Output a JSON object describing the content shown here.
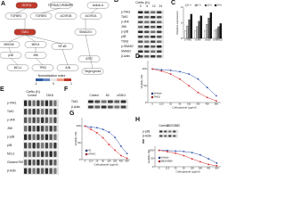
{
  "panels": {
    "a": {
      "label": "A",
      "nodes": [
        "GDF11",
        "TGFB/ACVR/BMPR",
        "Activin A",
        "TGFBR1",
        "TGFBR2",
        "ACVR1B",
        "ACVR2A",
        "TAK1",
        "SMAD2/3",
        "MKK3/6",
        "MKK4",
        "p38",
        "JNK",
        "NF-κB",
        "MCL1",
        "TP63",
        "JUN",
        "ATF2",
        "Target genes"
      ],
      "heatmap_label": "Normalization index",
      "scale": [
        -1,
        0,
        1
      ]
    },
    "b": {
      "label": "B",
      "treatment": "Cefto (h)",
      "times": [
        0,
        6,
        12,
        24
      ],
      "rows": [
        "p-TAK1",
        "TAK1",
        "p-JNK",
        "JNK",
        "p-p38",
        "p38",
        "TGFβ",
        "p-SMAD2",
        "SMAD2",
        "β-Actin"
      ]
    },
    "e": {
      "label": "E",
      "treatment": "Cefto (h)",
      "groups": [
        "Control",
        "TAK1i"
      ],
      "rows": [
        "p-TAK1",
        "TAK1",
        "p-JNK",
        "JNK",
        "p-p38",
        "p38",
        "MCL1",
        "Cleaved PARP",
        "β-Actin"
      ]
    },
    "f": {
      "label": "F",
      "groups": [
        "Control",
        "NC",
        "siTAK1"
      ],
      "rows": [
        "TAK1",
        "β-Actin"
      ]
    },
    "h": {
      "label": "H",
      "groups": [
        "Control",
        "SB203580"
      ],
      "rows": [
        "p-p38",
        "β-Actin"
      ]
    }
  },
  "chart_data": [
    {
      "type": "bar",
      "label": "C",
      "ylabel": "Relative expression",
      "categories": [
        "p-TAK1",
        "p-JNK",
        "p-p38",
        "p-SMAD2"
      ],
      "series": [
        {
          "name": "0 h",
          "color": "#ffffff",
          "values": [
            1,
            1,
            1,
            1
          ]
        },
        {
          "name": "6 h",
          "color": "#bbbbbb",
          "values": [
            1.6,
            1.5,
            1.8,
            1.2
          ]
        },
        {
          "name": "12 h",
          "color": "#666666",
          "values": [
            2.4,
            2.2,
            2.6,
            1.5
          ]
        },
        {
          "name": "24 h",
          "color": "#111111",
          "values": [
            3.1,
            2.9,
            3.3,
            1.9
          ]
        }
      ],
      "ylim": [
        0,
        4
      ],
      "yticks": [
        0,
        2,
        4
      ]
    },
    {
      "type": "line",
      "label": "D",
      "ylabel": "Viability (%)",
      "xlabel": "Ceftopiazole (μg/ml)",
      "categories": [
        "0",
        "12.5",
        "25",
        "50",
        "100",
        "200",
        "400",
        "800"
      ],
      "series": [
        {
          "name": "Vehicle",
          "color": "#2b4fa8",
          "values": [
            100,
            98,
            96,
            92,
            85,
            70,
            45,
            20
          ]
        },
        {
          "name": "TAK1i",
          "color": "#d62728",
          "values": [
            100,
            94,
            85,
            70,
            50,
            30,
            15,
            5
          ]
        }
      ],
      "ylim": [
        0,
        125
      ],
      "yticks": [
        0,
        50,
        100
      ]
    },
    {
      "type": "line",
      "label": "G",
      "ylabel": "Viability (%)",
      "xlabel": "Ceftopiazole (μg/ml)",
      "categories": [
        "0",
        "12.5",
        "25",
        "50",
        "100",
        "200",
        "400",
        "800"
      ],
      "series": [
        {
          "name": "NC",
          "color": "#2b4fa8",
          "values": [
            100,
            97,
            95,
            90,
            82,
            66,
            40,
            18
          ]
        },
        {
          "name": "siTAK1",
          "color": "#d62728",
          "values": [
            100,
            90,
            80,
            65,
            45,
            28,
            12,
            4
          ]
        }
      ],
      "ylim": [
        0,
        125
      ],
      "yticks": [
        0,
        50,
        100
      ]
    },
    {
      "type": "line",
      "label": "I",
      "ylabel": "Viability (%)",
      "xlabel": "Ceftopiazole (μg/ml)",
      "categories": [
        "0",
        "12.5",
        "25",
        "50",
        "100",
        "200",
        "400",
        "800"
      ],
      "series": [
        {
          "name": "Vehicle",
          "color": "#2b4fa8",
          "values": [
            100,
            99,
            96,
            93,
            86,
            72,
            48,
            22
          ]
        },
        {
          "name": "SB203580",
          "color": "#d62728",
          "values": [
            100,
            92,
            82,
            68,
            48,
            30,
            14,
            6
          ]
        }
      ],
      "ylim": [
        0,
        125
      ],
      "yticks": [
        0,
        50,
        100
      ]
    }
  ]
}
